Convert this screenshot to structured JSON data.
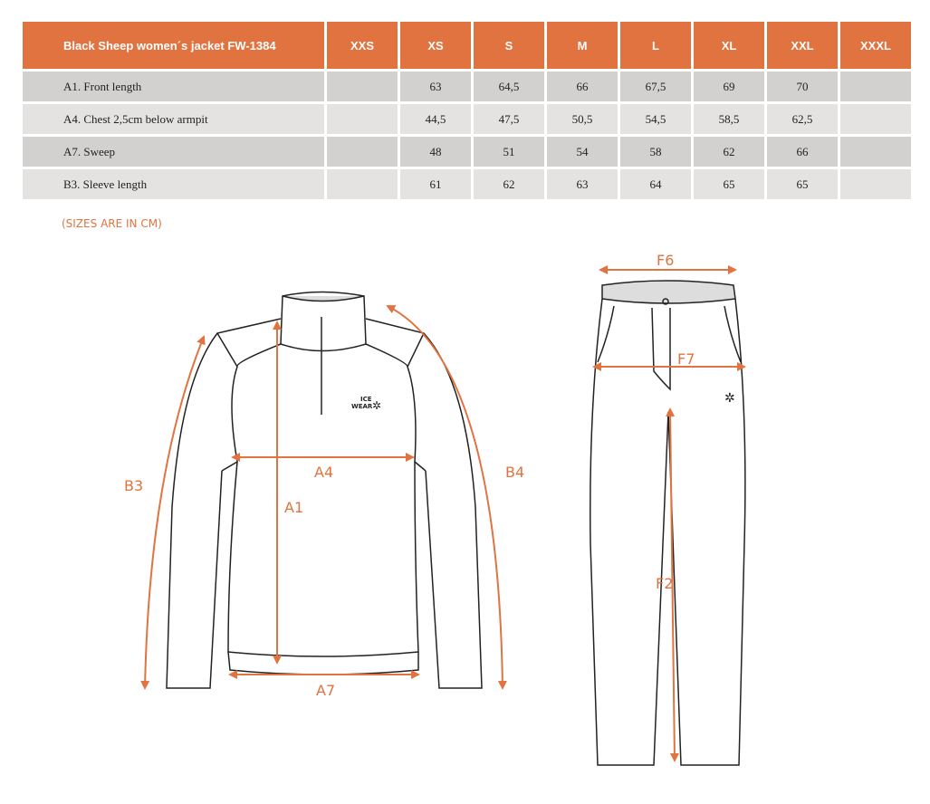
{
  "table": {
    "title": "Black Sheep women´s jacket FW-1384",
    "sizes": [
      "XXS",
      "XS",
      "S",
      "M",
      "L",
      "XL",
      "XXL",
      "XXXL"
    ],
    "rows": [
      {
        "label": "A1. Front length",
        "values": [
          "",
          "63",
          "64,5",
          "66",
          "67,5",
          "69",
          "70",
          ""
        ]
      },
      {
        "label": "A4. Chest 2,5cm below armpit",
        "values": [
          "",
          "44,5",
          "47,5",
          "50,5",
          "54,5",
          "58,5",
          "62,5",
          ""
        ]
      },
      {
        "label": "A7. Sweep",
        "values": [
          "",
          "48",
          "51",
          "54",
          "58",
          "62",
          "66",
          ""
        ]
      },
      {
        "label": "B3. Sleeve length",
        "values": [
          "",
          "61",
          "62",
          "63",
          "64",
          "65",
          "65",
          ""
        ]
      }
    ]
  },
  "note": "(SIZES ARE IN CM)",
  "labels": {
    "a1": "A1",
    "a4": "A4",
    "a7": "A7",
    "b3": "B3",
    "b4": "B4",
    "f6": "F6",
    "f7": "F7",
    "f2": "F2"
  },
  "logo": "ICE WEAR",
  "colors": {
    "accent": "#e07340",
    "row_dark": "#d2d1cf",
    "row_light": "#e4e3e1"
  }
}
